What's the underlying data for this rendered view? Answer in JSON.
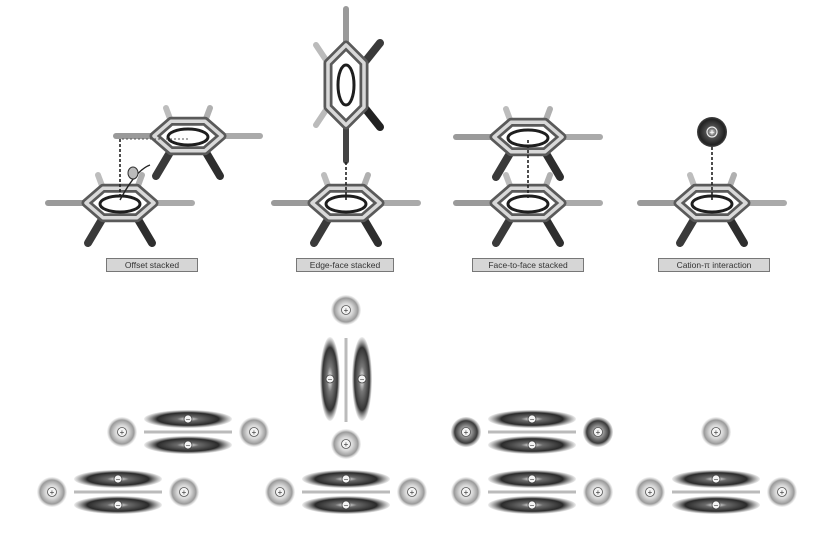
{
  "panels": [
    {
      "id": "offset",
      "label": "Offset stacked"
    },
    {
      "id": "edge",
      "label": "Edge-face stacked"
    },
    {
      "id": "face",
      "label": "Face-to-face stacked"
    },
    {
      "id": "cation",
      "label": "Cation-π interaction"
    }
  ],
  "charges": {
    "plus": "+",
    "minus": "−",
    "cation": "+"
  }
}
